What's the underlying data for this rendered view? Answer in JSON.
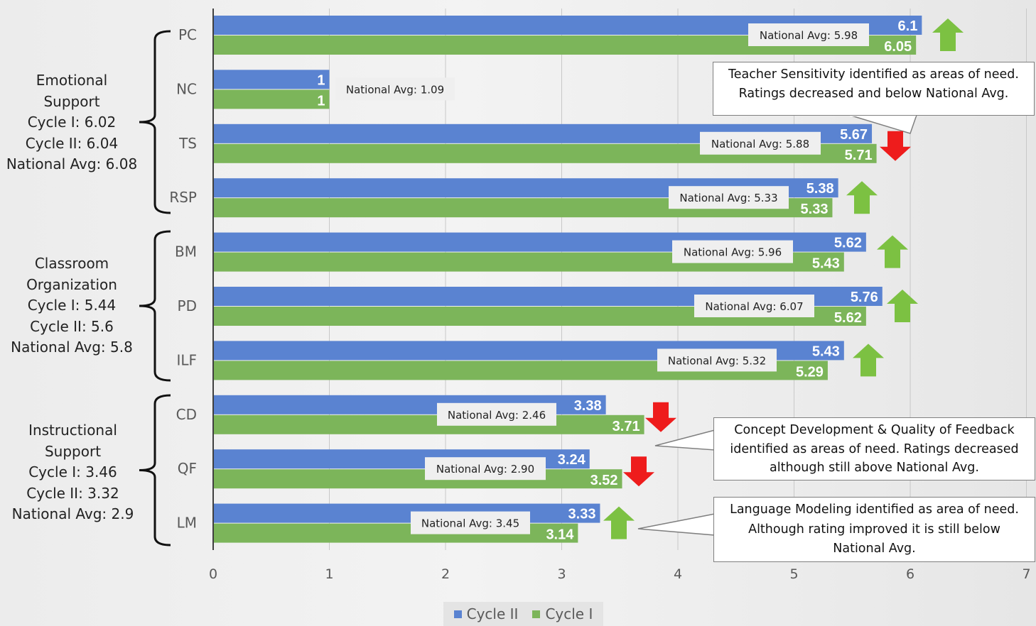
{
  "chart_data": {
    "type": "bar",
    "orientation": "horizontal",
    "categories": [
      "PC",
      "NC",
      "TS",
      "RSP",
      "BM",
      "PD",
      "ILF",
      "CD",
      "QF",
      "LM"
    ],
    "series": [
      {
        "name": "Cycle II",
        "color": "#5a83d1",
        "values": [
          6.1,
          1,
          5.67,
          5.38,
          5.62,
          5.76,
          5.43,
          3.38,
          3.24,
          3.33
        ]
      },
      {
        "name": "Cycle I",
        "color": "#7cb55a",
        "values": [
          6.05,
          1,
          5.71,
          5.33,
          5.43,
          5.62,
          5.29,
          3.71,
          3.52,
          3.14
        ]
      }
    ],
    "value_labels": {
      "cycle_ii": [
        "6.1",
        "1",
        "5.67",
        "5.38",
        "5.62",
        "5.76",
        "5.43",
        "3.38",
        "3.24",
        "3.33"
      ],
      "cycle_i": [
        "6.05",
        "1",
        "5.71",
        "5.33",
        "5.43",
        "5.62",
        "5.29",
        "3.71",
        "3.52",
        "3.14"
      ]
    },
    "national_avg_labels": [
      "National Avg: 5.98",
      "National Avg: 1.09",
      "National Avg: 5.88",
      "National Avg: 5.33",
      "National Avg: 5.96",
      "National Avg: 6.07",
      "National Avg: 5.32",
      "National Avg: 2.46",
      "National Avg: 2.90",
      "National Avg: 3.45"
    ],
    "trend_arrows": [
      "up",
      "none",
      "down",
      "up",
      "up",
      "up",
      "up",
      "down",
      "down",
      "up"
    ],
    "arrow_colors": {
      "up": "#7cc142",
      "down": "#ee1c1c"
    },
    "xlim": [
      0,
      7
    ],
    "x_ticks": [
      "0",
      "1",
      "2",
      "3",
      "4",
      "5",
      "6",
      "7"
    ],
    "grid": true,
    "legend_position": "bottom"
  },
  "groups": [
    {
      "lines": [
        "Emotional",
        "Support",
        "Cycle I:  6.02",
        "Cycle II: 6.04",
        "National Avg: 6.08"
      ]
    },
    {
      "lines": [
        "Classroom",
        "Organization",
        "Cycle I:  5.44",
        "Cycle II: 5.6",
        "National Avg: 5.8"
      ]
    },
    {
      "lines": [
        "Instructional",
        "Support",
        "Cycle I:  3.46",
        "Cycle II: 3.32",
        "National Avg: 2.9"
      ]
    }
  ],
  "callouts": [
    {
      "lines": [
        "Teacher Sensitivity identified as areas of need.",
        "Ratings decreased and below National Avg."
      ]
    },
    {
      "lines": [
        "Concept Development & Quality of Feedback",
        "identified as areas of need. Ratings decreased",
        "although still above National Avg."
      ]
    },
    {
      "lines": [
        "Language Modeling identified as area of need.",
        "Although rating improved it is still below",
        "National Avg."
      ]
    }
  ],
  "legend": [
    {
      "label": "Cycle II",
      "color": "#5a83d1"
    },
    {
      "label": "Cycle I",
      "color": "#7cb55a"
    }
  ]
}
